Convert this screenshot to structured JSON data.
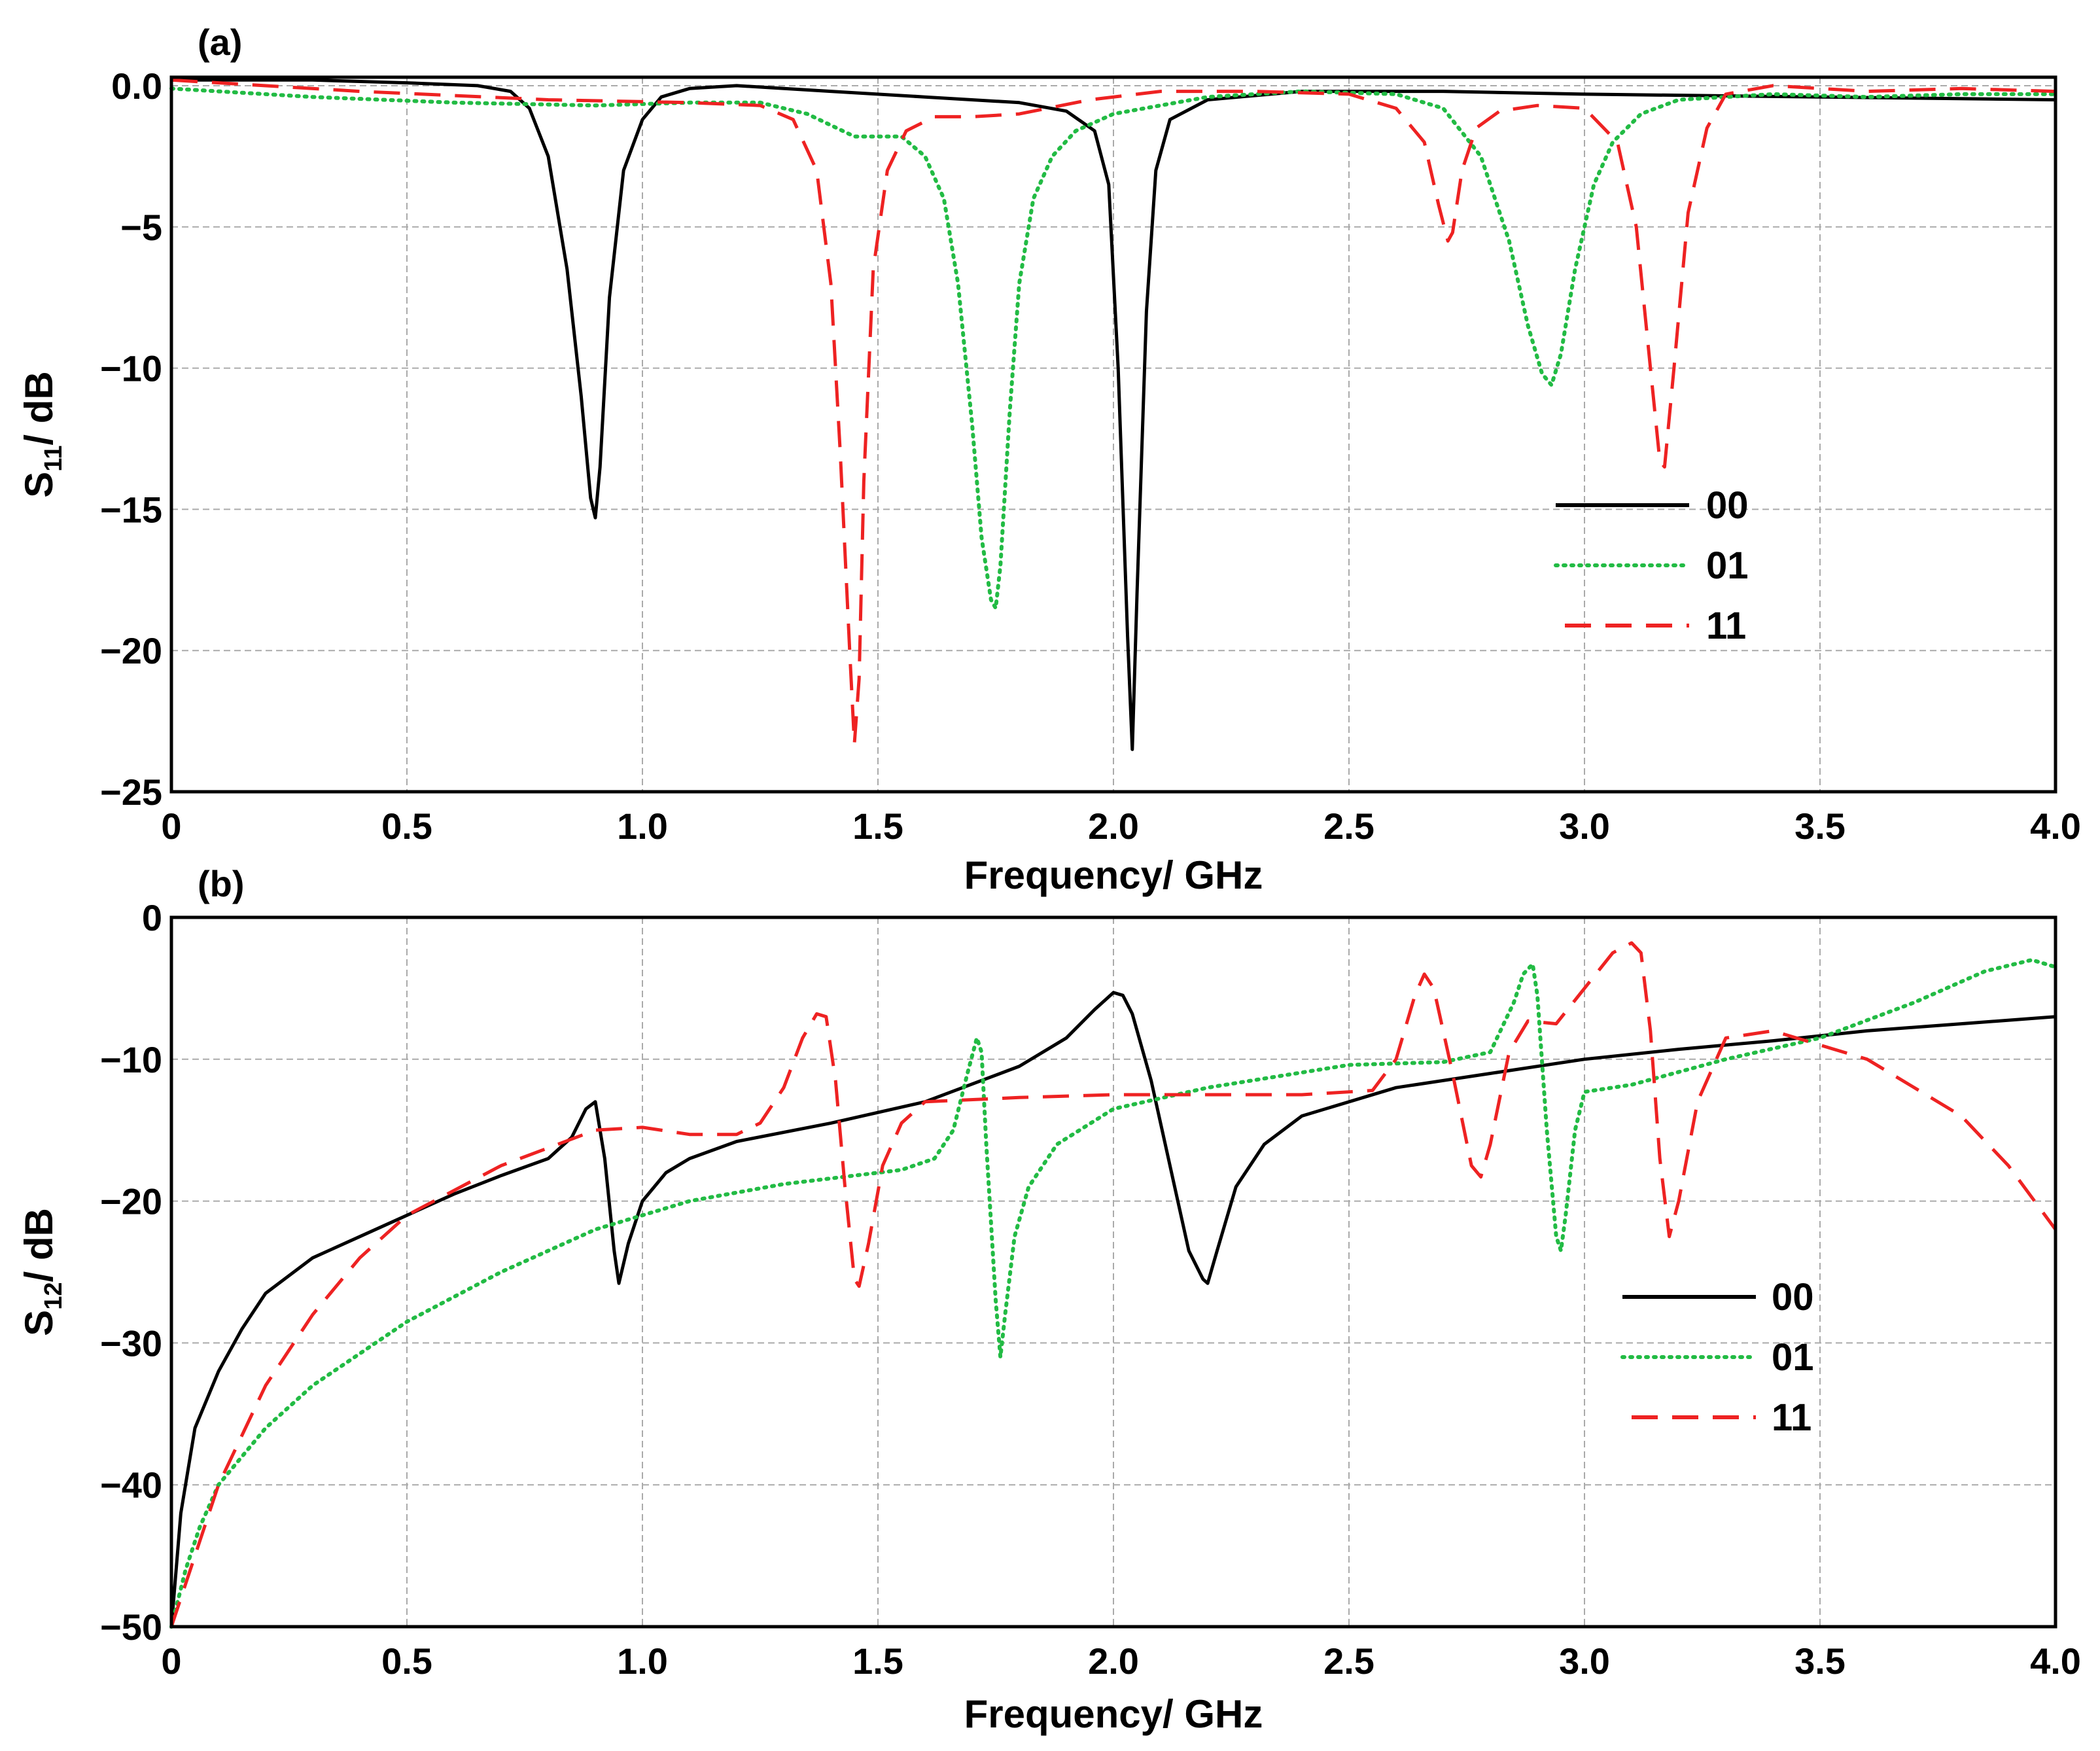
{
  "chart_data": [
    {
      "type": "line",
      "panel_label": "(a)",
      "xlabel": "Frequency/ GHz",
      "ylabel_main": "S",
      "ylabel_sub": "11",
      "ylabel_tail": "/ dB",
      "xlim": [
        0,
        4.0
      ],
      "ylim": [
        -25,
        0.3
      ],
      "x_ticks": [
        0,
        0.5,
        1.0,
        1.5,
        2.0,
        2.5,
        3.0,
        3.5,
        4.0
      ],
      "x_tick_labels": [
        "0",
        "0.5",
        "1.0",
        "1.5",
        "2.0",
        "2.5",
        "3.0",
        "3.5",
        "4.0"
      ],
      "y_ticks": [
        0,
        -5,
        -10,
        -15,
        -20,
        -25
      ],
      "y_tick_labels": [
        "0.0",
        "−5",
        "−10",
        "−15",
        "−20",
        "−25"
      ],
      "grid": true,
      "legend_position": "right",
      "series": [
        {
          "name": "00",
          "color": "#000000",
          "style": "solid",
          "x": [
            0,
            0.3,
            0.5,
            0.65,
            0.72,
            0.76,
            0.8,
            0.84,
            0.87,
            0.89,
            0.9,
            0.91,
            0.93,
            0.96,
            1.0,
            1.04,
            1.1,
            1.2,
            1.4,
            1.6,
            1.8,
            1.9,
            1.96,
            1.99,
            2.01,
            2.03,
            2.04,
            2.05,
            2.07,
            2.09,
            2.12,
            2.2,
            2.4,
            2.7,
            3.0,
            3.5,
            4.0
          ],
          "y": [
            0.2,
            0.2,
            0.1,
            0.0,
            -0.2,
            -0.8,
            -2.5,
            -6.5,
            -11.0,
            -14.6,
            -15.3,
            -13.5,
            -7.5,
            -3.0,
            -1.2,
            -0.4,
            -0.1,
            0.0,
            -0.2,
            -0.4,
            -0.6,
            -0.9,
            -1.6,
            -3.5,
            -10.0,
            -19.5,
            -23.5,
            -18.0,
            -8.0,
            -3.0,
            -1.2,
            -0.5,
            -0.2,
            -0.2,
            -0.3,
            -0.4,
            -0.5
          ]
        },
        {
          "name": "01",
          "color": "#22bb44",
          "style": "dotted",
          "x": [
            0,
            0.3,
            0.6,
            0.9,
            1.1,
            1.25,
            1.35,
            1.45,
            1.55,
            1.6,
            1.64,
            1.67,
            1.7,
            1.72,
            1.74,
            1.75,
            1.76,
            1.78,
            1.8,
            1.83,
            1.87,
            1.92,
            2.0,
            2.2,
            2.4,
            2.6,
            2.7,
            2.78,
            2.84,
            2.88,
            2.91,
            2.93,
            2.95,
            2.98,
            3.02,
            3.06,
            3.12,
            3.2,
            3.4,
            3.6,
            3.8,
            4.0
          ],
          "y": [
            -0.1,
            -0.4,
            -0.6,
            -0.7,
            -0.6,
            -0.6,
            -1.0,
            -1.8,
            -1.8,
            -2.5,
            -4.0,
            -7.0,
            -12.0,
            -16.0,
            -18.2,
            -18.5,
            -17.0,
            -11.5,
            -7.0,
            -4.0,
            -2.5,
            -1.6,
            -1.0,
            -0.4,
            -0.2,
            -0.3,
            -0.8,
            -2.5,
            -5.5,
            -8.5,
            -10.2,
            -10.6,
            -9.5,
            -6.5,
            -3.5,
            -2.0,
            -1.0,
            -0.5,
            -0.3,
            -0.4,
            -0.3,
            -0.3
          ]
        },
        {
          "name": "11",
          "color": "#ee2222",
          "style": "dashed",
          "x": [
            0,
            0.4,
            0.8,
            1.1,
            1.25,
            1.32,
            1.37,
            1.4,
            1.42,
            1.44,
            1.45,
            1.46,
            1.47,
            1.49,
            1.52,
            1.56,
            1.62,
            1.7,
            1.8,
            1.95,
            2.1,
            2.3,
            2.5,
            2.6,
            2.66,
            2.69,
            2.71,
            2.72,
            2.74,
            2.77,
            2.82,
            2.9,
            3.0,
            3.07,
            3.11,
            3.14,
            3.16,
            3.17,
            3.19,
            3.22,
            3.26,
            3.3,
            3.4,
            3.6,
            3.8,
            4.0
          ],
          "y": [
            0.2,
            -0.2,
            -0.5,
            -0.6,
            -0.7,
            -1.2,
            -3.0,
            -7.0,
            -13.0,
            -20.0,
            -23.3,
            -21.0,
            -14.0,
            -6.5,
            -3.0,
            -1.6,
            -1.1,
            -1.1,
            -1.0,
            -0.5,
            -0.2,
            -0.2,
            -0.3,
            -0.8,
            -2.0,
            -4.2,
            -5.5,
            -5.2,
            -3.0,
            -1.5,
            -0.9,
            -0.7,
            -0.8,
            -2.0,
            -5.0,
            -10.0,
            -13.3,
            -13.5,
            -10.0,
            -4.5,
            -1.5,
            -0.3,
            0.0,
            -0.2,
            -0.1,
            -0.2
          ]
        }
      ]
    },
    {
      "type": "line",
      "panel_label": "(b)",
      "xlabel": "Frequency/ GHz",
      "ylabel_main": "S",
      "ylabel_sub": "12",
      "ylabel_tail": "/ dB",
      "xlim": [
        0,
        4.0
      ],
      "ylim": [
        -50,
        0
      ],
      "x_ticks": [
        0,
        0.5,
        1.0,
        1.5,
        2.0,
        2.5,
        3.0,
        3.5,
        4.0
      ],
      "x_tick_labels": [
        "0",
        "0.5",
        "1.0",
        "1.5",
        "2.0",
        "2.5",
        "3.0",
        "3.5",
        "4.0"
      ],
      "y_ticks": [
        0,
        -10,
        -20,
        -30,
        -40,
        -50
      ],
      "y_tick_labels": [
        "0",
        "−10",
        "−20",
        "−30",
        "−40",
        "−50"
      ],
      "grid": true,
      "legend_position": "right",
      "series": [
        {
          "name": "00",
          "color": "#000000",
          "style": "solid",
          "x": [
            0,
            0.02,
            0.05,
            0.1,
            0.15,
            0.2,
            0.3,
            0.4,
            0.5,
            0.6,
            0.7,
            0.8,
            0.85,
            0.88,
            0.9,
            0.92,
            0.94,
            0.95,
            0.97,
            1.0,
            1.05,
            1.1,
            1.2,
            1.4,
            1.6,
            1.8,
            1.9,
            1.96,
            2.0,
            2.02,
            2.04,
            2.08,
            2.12,
            2.16,
            2.19,
            2.2,
            2.22,
            2.26,
            2.32,
            2.4,
            2.6,
            2.8,
            3.0,
            3.2,
            3.4,
            3.6,
            3.8,
            4.0
          ],
          "y": [
            -50,
            -42,
            -36,
            -32,
            -29,
            -26.5,
            -24,
            -22.5,
            -21,
            -19.5,
            -18.2,
            -17.0,
            -15.5,
            -13.5,
            -13.0,
            -17.0,
            -23.5,
            -25.8,
            -23.0,
            -20.0,
            -18.0,
            -17.0,
            -15.8,
            -14.5,
            -13.0,
            -10.5,
            -8.5,
            -6.5,
            -5.3,
            -5.5,
            -6.8,
            -11.5,
            -17.5,
            -23.5,
            -25.5,
            -25.8,
            -23.5,
            -19.0,
            -16.0,
            -14.0,
            -12.0,
            -11.0,
            -10.0,
            -9.3,
            -8.7,
            -8.0,
            -7.5,
            -7.0
          ]
        },
        {
          "name": "01",
          "color": "#22bb44",
          "style": "dotted",
          "x": [
            0,
            0.03,
            0.06,
            0.1,
            0.2,
            0.3,
            0.5,
            0.7,
            0.9,
            1.1,
            1.3,
            1.45,
            1.55,
            1.62,
            1.66,
            1.69,
            1.71,
            1.72,
            1.73,
            1.75,
            1.76,
            1.77,
            1.79,
            1.82,
            1.88,
            2.0,
            2.2,
            2.5,
            2.7,
            2.8,
            2.85,
            2.87,
            2.89,
            2.9,
            2.92,
            2.94,
            2.95,
            2.96,
            2.98,
            3.0,
            3.1,
            3.3,
            3.5,
            3.7,
            3.85,
            3.95,
            4.0
          ],
          "y": [
            -50,
            -46,
            -43,
            -40,
            -36,
            -33,
            -28.5,
            -25,
            -22,
            -20,
            -18.8,
            -18.2,
            -17.8,
            -17.0,
            -15.0,
            -11.0,
            -8.5,
            -9.5,
            -16.0,
            -27.0,
            -31.0,
            -28.0,
            -22.5,
            -19.0,
            -16.0,
            -13.5,
            -12.0,
            -10.4,
            -10.2,
            -9.5,
            -6.0,
            -4.0,
            -3.3,
            -5.5,
            -15.0,
            -22.5,
            -23.5,
            -21.0,
            -15.0,
            -12.3,
            -11.8,
            -10.0,
            -8.5,
            -6.0,
            -3.8,
            -3.0,
            -3.5
          ]
        },
        {
          "name": "11",
          "color": "#ee2222",
          "style": "dashed",
          "x": [
            0,
            0.03,
            0.06,
            0.1,
            0.2,
            0.3,
            0.4,
            0.5,
            0.7,
            0.9,
            1.0,
            1.1,
            1.2,
            1.25,
            1.3,
            1.34,
            1.37,
            1.39,
            1.41,
            1.43,
            1.45,
            1.46,
            1.48,
            1.51,
            1.55,
            1.6,
            1.8,
            2.0,
            2.2,
            2.4,
            2.55,
            2.6,
            2.64,
            2.66,
            2.68,
            2.72,
            2.76,
            2.78,
            2.8,
            2.84,
            2.88,
            2.94,
            3.0,
            3.06,
            3.1,
            3.12,
            3.14,
            3.16,
            3.18,
            3.2,
            3.24,
            3.3,
            3.4,
            3.6,
            3.8,
            3.9,
            4.0
          ],
          "y": [
            -50,
            -47,
            -44,
            -40,
            -33,
            -28,
            -24,
            -21,
            -17.5,
            -15.0,
            -14.8,
            -15.3,
            -15.3,
            -14.5,
            -12.0,
            -8.5,
            -6.8,
            -7.0,
            -11.5,
            -19.0,
            -25.5,
            -26.0,
            -23.0,
            -17.5,
            -14.5,
            -13.0,
            -12.7,
            -12.5,
            -12.5,
            -12.5,
            -12.2,
            -10.0,
            -5.5,
            -4.0,
            -5.0,
            -11.0,
            -17.5,
            -18.3,
            -16.0,
            -9.5,
            -7.3,
            -7.5,
            -5.0,
            -2.5,
            -1.8,
            -2.5,
            -8.0,
            -17.0,
            -22.5,
            -20.0,
            -13.0,
            -8.5,
            -8.0,
            -10.0,
            -14.0,
            -17.5,
            -22.0
          ]
        }
      ]
    }
  ]
}
